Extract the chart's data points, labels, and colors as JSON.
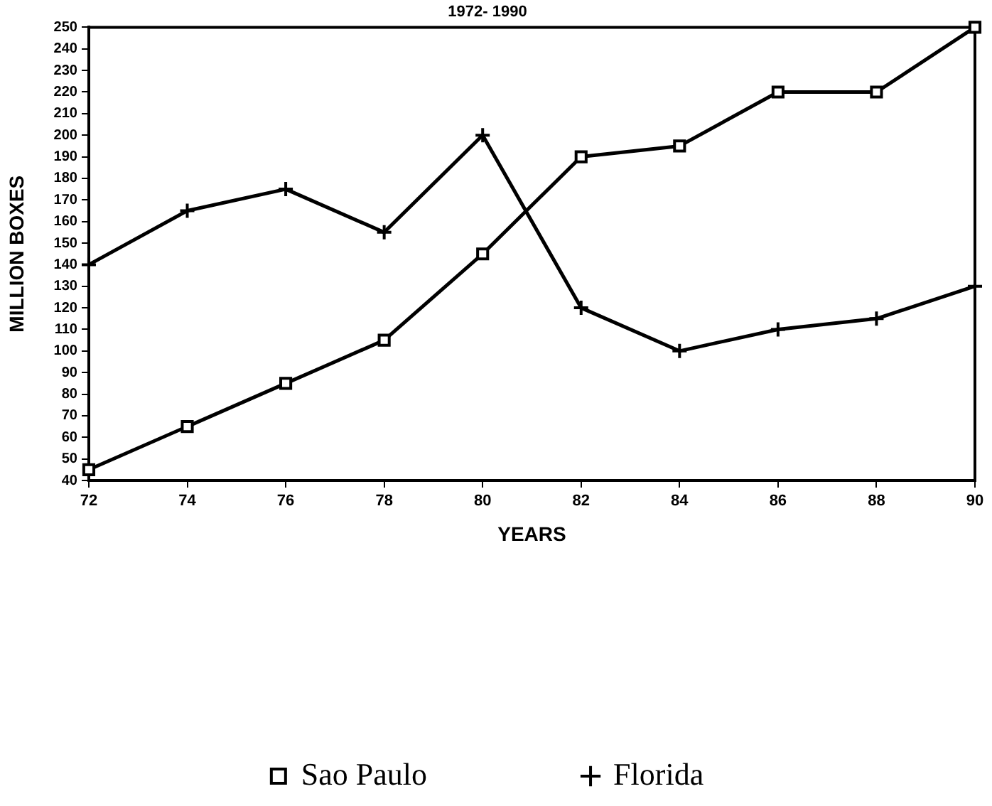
{
  "chart_data": {
    "type": "line",
    "title": "1972- 1990",
    "xlabel": "YEARS",
    "ylabel": "MILLION BOXES",
    "x": [
      72,
      74,
      76,
      78,
      80,
      82,
      84,
      86,
      88,
      90
    ],
    "xlim": [
      72,
      90
    ],
    "xticks": [
      72,
      74,
      76,
      78,
      80,
      82,
      84,
      86,
      88,
      90
    ],
    "ylim": [
      40,
      250
    ],
    "yticks": [
      40,
      50,
      60,
      70,
      80,
      90,
      100,
      110,
      120,
      130,
      140,
      150,
      160,
      170,
      180,
      190,
      200,
      210,
      220,
      230,
      240,
      250
    ],
    "grid": false,
    "legend": "bottom",
    "line_style": "solid",
    "series": [
      {
        "name": "Sao Paulo",
        "color": "#000000",
        "marker": "square",
        "values": [
          45,
          65,
          85,
          105,
          145,
          190,
          195,
          220,
          220,
          250
        ]
      },
      {
        "name": "Florida",
        "color": "#000000",
        "marker": "cross",
        "values": [
          140,
          165,
          175,
          155,
          200,
          120,
          100,
          110,
          115,
          130
        ]
      }
    ]
  }
}
